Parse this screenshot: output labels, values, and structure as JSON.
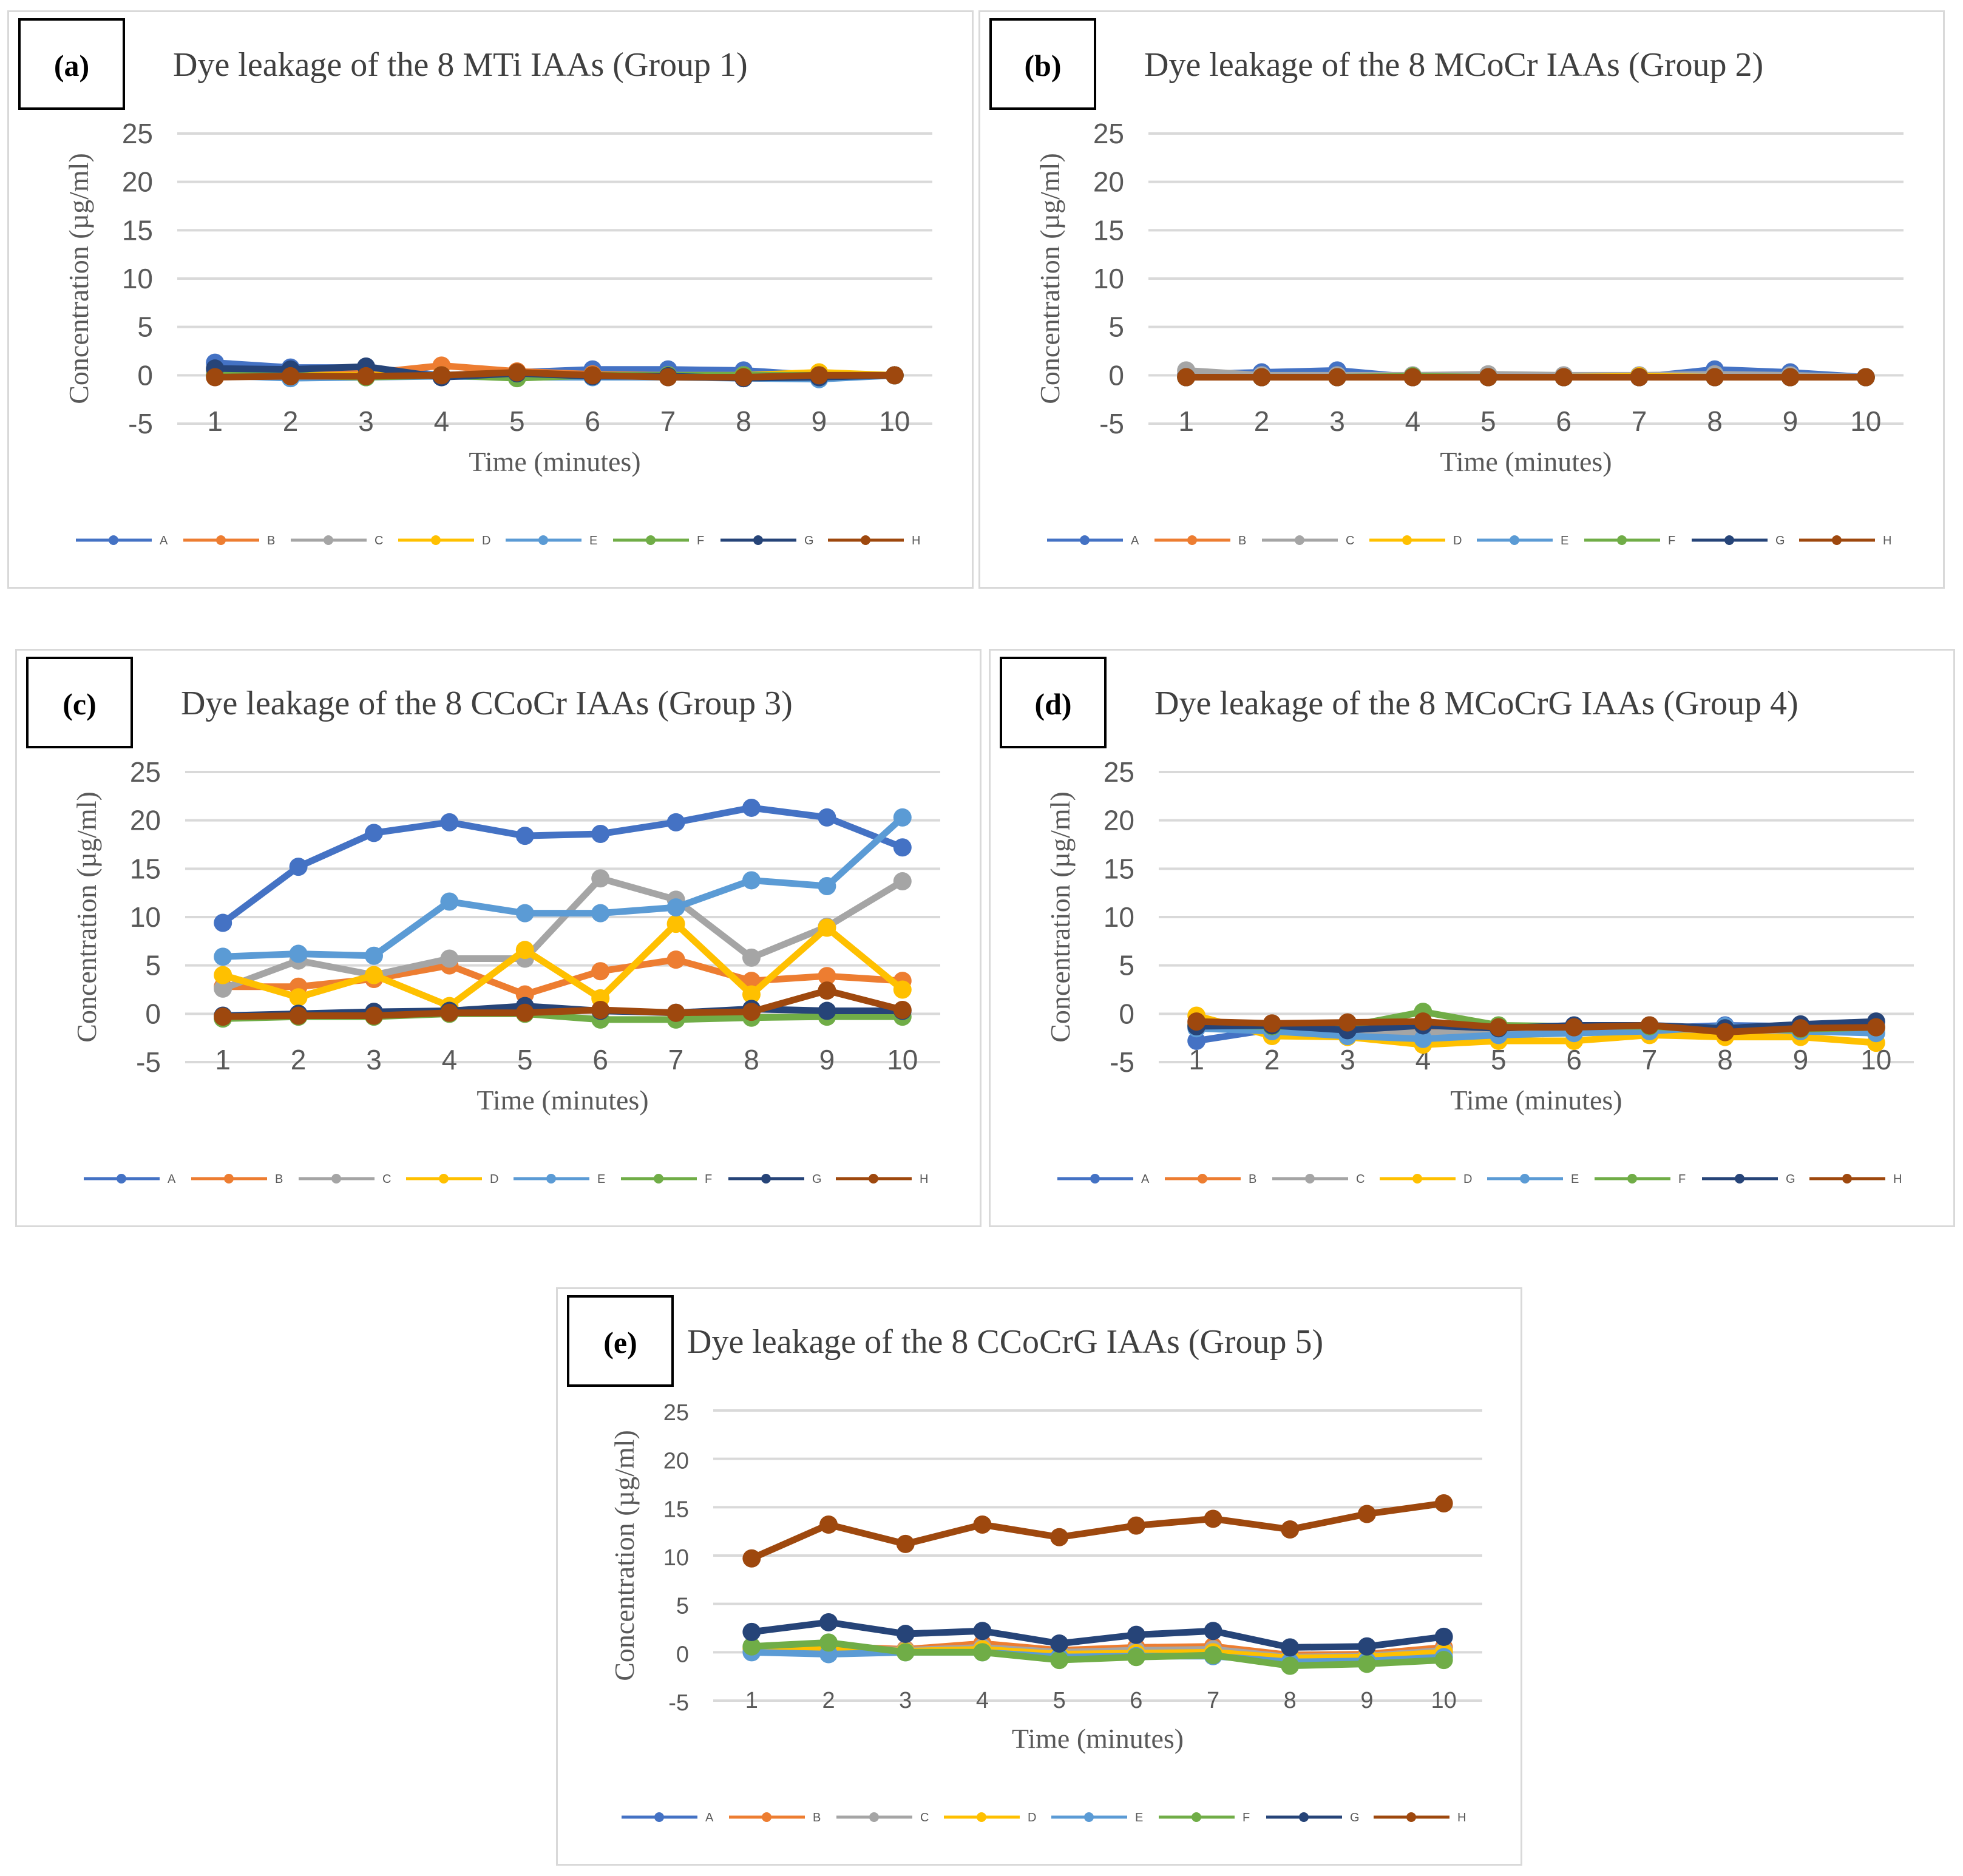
{
  "series_colors": {
    "A": "#4472C4",
    "B": "#ED7D31",
    "C": "#A5A5A5",
    "D": "#FFC000",
    "E": "#5B9BD5",
    "F": "#70AD47",
    "G": "#264478",
    "H": "#9E480E"
  },
  "chart_data": [
    {
      "panel_label": "(a)",
      "type": "line",
      "title": "Dye leakage of the 8 MTi IAAs (Group 1)",
      "xlabel": "Time (minutes)",
      "ylabel": "Concentration (µg/ml)",
      "ylim": [
        -5,
        25
      ],
      "yticks": [
        -5,
        0,
        5,
        10,
        15,
        20,
        25
      ],
      "categories": [
        "1",
        "2",
        "3",
        "4",
        "5",
        "6",
        "7",
        "8",
        "9",
        "10"
      ],
      "grid": true,
      "legend": "bottom",
      "series": [
        {
          "name": "A",
          "values": [
            1.3,
            0.8,
            0.8,
            0,
            0.3,
            0.6,
            0.6,
            0.5,
            0,
            0
          ]
        },
        {
          "name": "B",
          "values": [
            0.5,
            0.2,
            0.2,
            1,
            0.4,
            0.1,
            0,
            0,
            0,
            0
          ]
        },
        {
          "name": "C",
          "values": [
            0.3,
            0,
            0,
            0,
            0,
            0,
            0,
            0,
            0,
            0
          ]
        },
        {
          "name": "D",
          "values": [
            0,
            0,
            0,
            0,
            0,
            0,
            0,
            0,
            0.3,
            0
          ]
        },
        {
          "name": "E",
          "values": [
            0,
            -0.3,
            -0.2,
            -0.1,
            -0.2,
            -0.2,
            -0.2,
            -0.3,
            -0.4,
            0
          ]
        },
        {
          "name": "F",
          "values": [
            0,
            0,
            -0.2,
            0,
            -0.3,
            0,
            0,
            0,
            0,
            0
          ]
        },
        {
          "name": "G",
          "values": [
            0.7,
            0.6,
            0.9,
            -0.2,
            0.2,
            -0.1,
            -0.1,
            -0.3,
            -0.2,
            0
          ]
        },
        {
          "name": "H",
          "values": [
            -0.2,
            -0.1,
            -0.1,
            0,
            0.3,
            0,
            -0.2,
            -0.2,
            0,
            0
          ]
        }
      ]
    },
    {
      "panel_label": "(b)",
      "type": "line",
      "title": "Dye leakage of the 8 MCoCr IAAs (Group 2)",
      "xlabel": "Time (minutes)",
      "ylabel": "Concentration (µg/ml)",
      "ylim": [
        -5,
        25
      ],
      "yticks": [
        -5,
        0,
        5,
        10,
        15,
        20,
        25
      ],
      "categories": [
        "1",
        "2",
        "3",
        "4",
        "5",
        "6",
        "7",
        "8",
        "9",
        "10"
      ],
      "grid": true,
      "legend": "bottom",
      "series": [
        {
          "name": "A",
          "values": [
            0.1,
            0.3,
            0.5,
            -0.2,
            0,
            -0.2,
            -0.2,
            0.6,
            0.3,
            -0.2
          ]
        },
        {
          "name": "B",
          "values": [
            -0.1,
            -0.2,
            -0.2,
            -0.2,
            -0.1,
            -0.2,
            -0.2,
            -0.1,
            -0.2,
            -0.2
          ]
        },
        {
          "name": "C",
          "values": [
            0.5,
            0,
            0,
            0,
            0.1,
            0,
            0,
            0.1,
            0,
            -0.2
          ]
        },
        {
          "name": "D",
          "values": [
            -0.2,
            -0.2,
            -0.2,
            -0.2,
            -0.2,
            -0.2,
            -0.1,
            -0.2,
            -0.2,
            -0.2
          ]
        },
        {
          "name": "E",
          "values": [
            -0.2,
            -0.2,
            -0.2,
            -0.2,
            -0.2,
            -0.2,
            -0.2,
            -0.2,
            -0.2,
            -0.2
          ]
        },
        {
          "name": "F",
          "values": [
            -0.2,
            -0.2,
            -0.2,
            -0.1,
            -0.2,
            -0.2,
            -0.2,
            -0.2,
            -0.2,
            -0.2
          ]
        },
        {
          "name": "G",
          "values": [
            -0.2,
            -0.2,
            -0.2,
            -0.2,
            -0.2,
            -0.2,
            -0.2,
            -0.2,
            -0.2,
            -0.2
          ]
        },
        {
          "name": "H",
          "values": [
            -0.2,
            -0.2,
            -0.2,
            -0.2,
            -0.2,
            -0.2,
            -0.2,
            -0.2,
            -0.2,
            -0.2
          ]
        }
      ]
    },
    {
      "panel_label": "(c)",
      "type": "line",
      "title": "Dye leakage of the 8 CCoCr IAAs (Group 3)",
      "xlabel": "Time (minutes)",
      "ylabel": "Concentration (µg/ml)",
      "ylim": [
        -5,
        25
      ],
      "yticks": [
        -5,
        0,
        5,
        10,
        15,
        20,
        25
      ],
      "categories": [
        "1",
        "2",
        "3",
        "4",
        "5",
        "6",
        "7",
        "8",
        "9",
        "10"
      ],
      "grid": true,
      "legend": "bottom",
      "series": [
        {
          "name": "A",
          "values": [
            9.4,
            15.2,
            18.7,
            19.8,
            18.4,
            18.6,
            19.8,
            21.3,
            20.3,
            17.2
          ]
        },
        {
          "name": "B",
          "values": [
            2.8,
            2.8,
            3.6,
            5,
            2,
            4.4,
            5.6,
            3.4,
            3.9,
            3.4
          ]
        },
        {
          "name": "C",
          "values": [
            2.6,
            5.5,
            4,
            5.7,
            5.7,
            14,
            11.8,
            5.8,
            9,
            13.7
          ]
        },
        {
          "name": "D",
          "values": [
            4,
            1.7,
            4,
            0.8,
            6.6,
            1.6,
            9.3,
            2,
            8.9,
            2.5
          ]
        },
        {
          "name": "E",
          "values": [
            5.9,
            6.2,
            6,
            11.6,
            10.4,
            10.4,
            11,
            13.8,
            13.2,
            20.3
          ]
        },
        {
          "name": "F",
          "values": [
            -0.5,
            -0.3,
            -0.3,
            0,
            0,
            -0.6,
            -0.6,
            -0.4,
            -0.3,
            -0.3
          ]
        },
        {
          "name": "G",
          "values": [
            -0.2,
            0,
            0.2,
            0.3,
            0.8,
            0.3,
            0.1,
            0.5,
            0.3,
            0.3
          ]
        },
        {
          "name": "H",
          "values": [
            -0.3,
            -0.2,
            -0.2,
            0.1,
            0.1,
            0.4,
            0.1,
            0.2,
            2.4,
            0.4
          ]
        }
      ]
    },
    {
      "panel_label": "(d)",
      "type": "line",
      "title": "Dye leakage of the 8 MCoCrG IAAs (Group 4)",
      "xlabel": "Time (minutes)",
      "ylabel": "Concentration (µg/ml)",
      "ylim": [
        -5,
        25
      ],
      "yticks": [
        -5,
        0,
        5,
        10,
        15,
        20,
        25
      ],
      "categories": [
        "1",
        "2",
        "3",
        "4",
        "5",
        "6",
        "7",
        "8",
        "9",
        "10"
      ],
      "grid": true,
      "legend": "bottom",
      "series": [
        {
          "name": "A",
          "values": [
            -2.8,
            -1.6,
            -1.6,
            -1.7,
            -1.7,
            -1.7,
            -1.5,
            -1.2,
            -1.3,
            -1.3
          ]
        },
        {
          "name": "B",
          "values": [
            -1,
            -1.2,
            -1.2,
            -1.5,
            -1.4,
            -1.3,
            -1.2,
            -1.8,
            -1.5,
            -1.5
          ]
        },
        {
          "name": "C",
          "values": [
            -1.1,
            -1.6,
            -1.8,
            -2,
            -1.8,
            -1.7,
            -1.5,
            -2,
            -1.7,
            -2
          ]
        },
        {
          "name": "D",
          "values": [
            -0.2,
            -2.3,
            -2.4,
            -3.2,
            -2.8,
            -2.8,
            -2.2,
            -2.4,
            -2.4,
            -3
          ]
        },
        {
          "name": "E",
          "values": [
            -1.5,
            -1.8,
            -2.3,
            -2.6,
            -2.2,
            -2,
            -1.8,
            -1.3,
            -1.8,
            -2
          ]
        },
        {
          "name": "F",
          "values": [
            -1.2,
            -1.3,
            -1.3,
            0.2,
            -1.2,
            -1.3,
            -1.3,
            -1.7,
            -1.6,
            -1.4
          ]
        },
        {
          "name": "G",
          "values": [
            -1.3,
            -1.2,
            -1.7,
            -1.2,
            -1.5,
            -1.2,
            -1.2,
            -1.5,
            -1.1,
            -0.8
          ]
        },
        {
          "name": "H",
          "values": [
            -0.8,
            -1,
            -0.9,
            -0.8,
            -1.4,
            -1.4,
            -1.2,
            -1.9,
            -1.5,
            -1.4
          ]
        }
      ]
    },
    {
      "panel_label": "(e)",
      "type": "line",
      "title": "Dye leakage of the 8 CCoCrG IAAs (Group 5)",
      "xlabel": "Time (minutes)",
      "ylabel": "Concentration (µg/ml)",
      "ylim": [
        -5,
        25
      ],
      "yticks": [
        -5,
        0,
        5,
        10,
        15,
        20,
        25
      ],
      "categories": [
        "1",
        "2",
        "3",
        "4",
        "5",
        "6",
        "7",
        "8",
        "9",
        "10"
      ],
      "grid": true,
      "legend": "bottom",
      "series": [
        {
          "name": "A",
          "values": [
            0.3,
            0.5,
            0.1,
            0.2,
            -0.3,
            -0.2,
            -0.1,
            -0.8,
            -0.7,
            0
          ]
        },
        {
          "name": "B",
          "values": [
            0.5,
            0.6,
            0.3,
            0.9,
            0.2,
            0.5,
            0.6,
            -0.3,
            -0.2,
            0.5
          ]
        },
        {
          "name": "C",
          "values": [
            0.4,
            0.5,
            0.2,
            0.5,
            0,
            0.2,
            0.3,
            -0.5,
            -0.4,
            0.2
          ]
        },
        {
          "name": "D",
          "values": [
            0.4,
            0.5,
            0.1,
            0.3,
            -0.2,
            -0.1,
            0,
            -0.6,
            -0.5,
            0
          ]
        },
        {
          "name": "E",
          "values": [
            0,
            -0.2,
            0,
            0,
            -0.5,
            -0.4,
            -0.4,
            -1,
            -0.9,
            -0.5
          ]
        },
        {
          "name": "F",
          "values": [
            0.6,
            1,
            0,
            0,
            -0.8,
            -0.5,
            -0.3,
            -1.4,
            -1.2,
            -0.8
          ]
        },
        {
          "name": "G",
          "values": [
            2.1,
            3.1,
            1.9,
            2.2,
            0.9,
            1.8,
            2.2,
            0.5,
            0.6,
            1.6
          ]
        },
        {
          "name": "H",
          "values": [
            9.7,
            13.2,
            11.2,
            13.2,
            11.9,
            13.1,
            13.8,
            12.7,
            14.3,
            15.4
          ]
        }
      ]
    }
  ]
}
